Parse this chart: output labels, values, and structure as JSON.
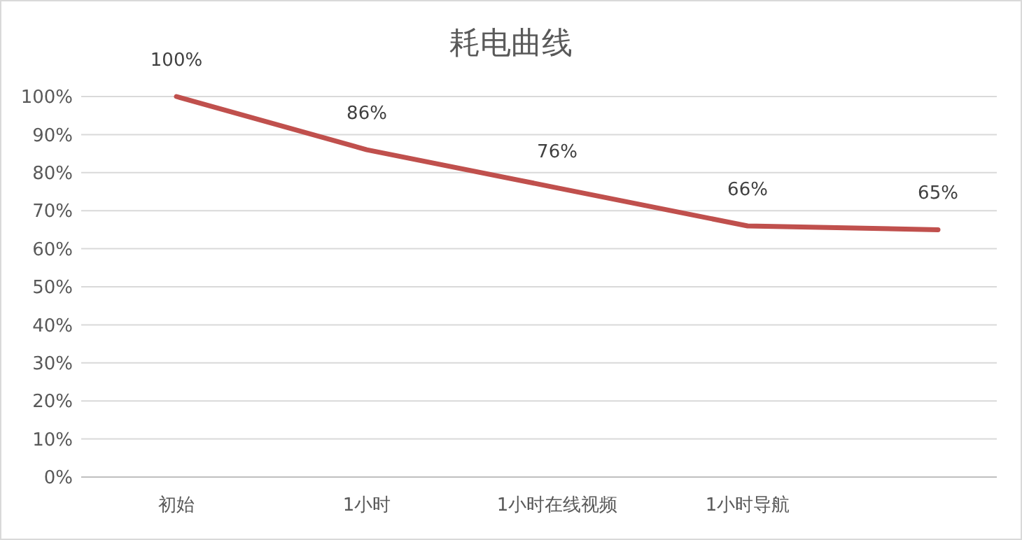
{
  "chart_data": {
    "type": "line",
    "title": "耗电曲线",
    "categories": [
      "初始",
      "1小时",
      "1小时在线视频",
      "1小时导航",
      null
    ],
    "series": [
      {
        "color": "#c0504d",
        "values": [
          100,
          86,
          76,
          66,
          65
        ],
        "value_labels": [
          "100%",
          "86%",
          "76%",
          "66%",
          "65%"
        ]
      }
    ],
    "ylim": [
      0,
      100
    ],
    "yticks": [
      {
        "value": 0,
        "label": "0%"
      },
      {
        "value": 10,
        "label": "10%"
      },
      {
        "value": 20,
        "label": "20%"
      },
      {
        "value": 30,
        "label": "30%"
      },
      {
        "value": 40,
        "label": "40%"
      },
      {
        "value": 50,
        "label": "50%"
      },
      {
        "value": 60,
        "label": "60%"
      },
      {
        "value": 70,
        "label": "70%"
      },
      {
        "value": 80,
        "label": "80%"
      },
      {
        "value": 90,
        "label": "90%"
      },
      {
        "value": 100,
        "label": "100%"
      }
    ],
    "grid": "y",
    "marker": "none",
    "line_style": "solid"
  }
}
